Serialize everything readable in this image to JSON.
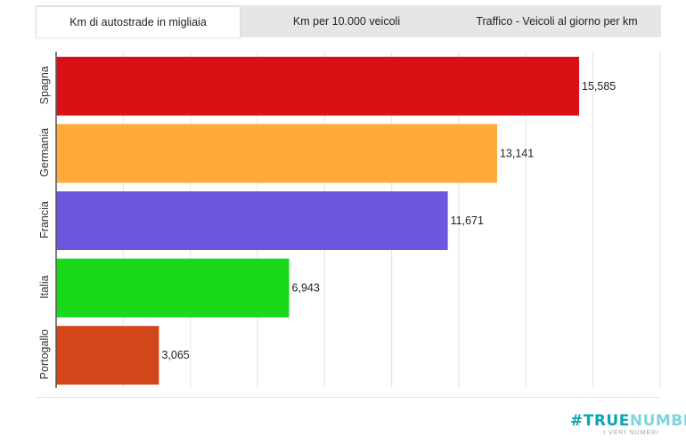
{
  "tabs": [
    {
      "label": "Km di autostrade in migliaia",
      "active": true
    },
    {
      "label": "Km per 10.000 veicoli",
      "active": false
    },
    {
      "label": "Traffico - Veicoli al giorno per km",
      "active": false
    }
  ],
  "chart_data": {
    "type": "bar",
    "orientation": "horizontal",
    "categories": [
      "Spagna",
      "Germania",
      "Francia",
      "Italia",
      "Portogallo"
    ],
    "values": [
      15.585,
      13.141,
      11.671,
      6.943,
      3.065
    ],
    "value_labels": [
      "15,585",
      "13,141",
      "11,671",
      "6,943",
      "3,065"
    ],
    "colors": [
      "#d91115",
      "#ffaa3a",
      "#6b57de",
      "#1ad81a",
      "#d3461a"
    ],
    "xlim": [
      0,
      18
    ],
    "grid": true,
    "legend": "none"
  },
  "logo": {
    "hash": "#",
    "true": "TRUE",
    "numbers": "NUMBERS",
    "tagline": "I VERI NUMERI"
  }
}
